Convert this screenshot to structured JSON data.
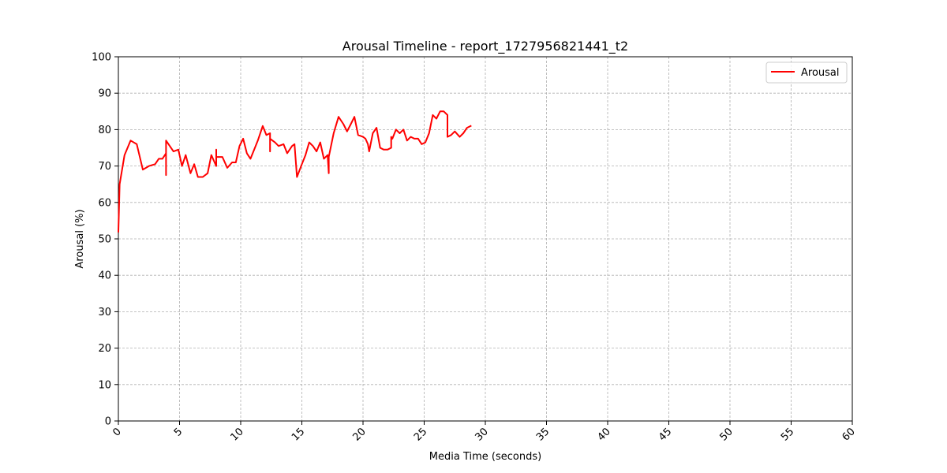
{
  "chart_data": {
    "type": "line",
    "title": "Arousal Timeline - report_1727956821441_t2",
    "xlabel": "Media Time (seconds)",
    "ylabel": "Arousal (%)",
    "xlim": [
      0,
      60
    ],
    "ylim": [
      0,
      100
    ],
    "x_ticks": [
      "0",
      "5",
      "10",
      "15",
      "20",
      "25",
      "30",
      "35",
      "40",
      "45",
      "50",
      "55",
      "60"
    ],
    "y_ticks": [
      "0",
      "10",
      "20",
      "30",
      "40",
      "50",
      "60",
      "70",
      "80",
      "90",
      "100"
    ],
    "x_tick_rotation": "45 degrees",
    "grid": true,
    "legend_position": "top-right",
    "series": [
      {
        "name": "Arousal",
        "color": "#ff0000",
        "points": [
          [
            0.0,
            52
          ],
          [
            0.1,
            65
          ],
          [
            0.5,
            73
          ],
          [
            1.0,
            77
          ],
          [
            1.5,
            76
          ],
          [
            2.0,
            69
          ],
          [
            2.5,
            70
          ],
          [
            3.0,
            70.5
          ],
          [
            3.3,
            72
          ],
          [
            3.6,
            72
          ],
          [
            3.9,
            73.5
          ],
          [
            3.9,
            67.5
          ],
          [
            3.9,
            77
          ],
          [
            4.2,
            75.5
          ],
          [
            4.5,
            74
          ],
          [
            4.9,
            74.5
          ],
          [
            5.2,
            70
          ],
          [
            5.5,
            73
          ],
          [
            5.9,
            68
          ],
          [
            6.2,
            70.5
          ],
          [
            6.5,
            67
          ],
          [
            6.9,
            67
          ],
          [
            7.3,
            68
          ],
          [
            7.6,
            73
          ],
          [
            8.0,
            70
          ],
          [
            8.0,
            74.5
          ],
          [
            8.0,
            72.5
          ],
          [
            8.5,
            72.5
          ],
          [
            8.9,
            69.5
          ],
          [
            9.3,
            71
          ],
          [
            9.6,
            71
          ],
          [
            9.9,
            75.5
          ],
          [
            10.2,
            77.5
          ],
          [
            10.5,
            73.5
          ],
          [
            10.8,
            72
          ],
          [
            11.1,
            74.5
          ],
          [
            11.4,
            77
          ],
          [
            11.8,
            81
          ],
          [
            12.1,
            78.5
          ],
          [
            12.4,
            79
          ],
          [
            12.4,
            74
          ],
          [
            12.4,
            77.5
          ],
          [
            12.8,
            76.5
          ],
          [
            13.1,
            75.5
          ],
          [
            13.5,
            76
          ],
          [
            13.8,
            73.5
          ],
          [
            14.2,
            75.5
          ],
          [
            14.4,
            76
          ],
          [
            14.6,
            67
          ],
          [
            15.0,
            70.5
          ],
          [
            15.3,
            73
          ],
          [
            15.6,
            76.5
          ],
          [
            15.9,
            75.5
          ],
          [
            16.2,
            74
          ],
          [
            16.5,
            76.5
          ],
          [
            16.8,
            72
          ],
          [
            17.1,
            73
          ],
          [
            17.2,
            68
          ],
          [
            17.2,
            72.5
          ],
          [
            17.6,
            79
          ],
          [
            18.0,
            83.5
          ],
          [
            18.4,
            81.5
          ],
          [
            18.7,
            79.5
          ],
          [
            19.0,
            81.5
          ],
          [
            19.3,
            83.5
          ],
          [
            19.6,
            78.5
          ],
          [
            20.0,
            78
          ],
          [
            20.2,
            77.5
          ],
          [
            20.4,
            76
          ],
          [
            20.5,
            74
          ],
          [
            20.8,
            79
          ],
          [
            21.1,
            80.5
          ],
          [
            21.4,
            75
          ],
          [
            21.7,
            74.5
          ],
          [
            22.0,
            74.5
          ],
          [
            22.3,
            75
          ],
          [
            22.3,
            78
          ],
          [
            22.4,
            77.5
          ],
          [
            22.7,
            80
          ],
          [
            23.0,
            79
          ],
          [
            23.3,
            80
          ],
          [
            23.6,
            77
          ],
          [
            23.9,
            78
          ],
          [
            24.2,
            77.5
          ],
          [
            24.5,
            77.5
          ],
          [
            24.8,
            76
          ],
          [
            25.1,
            76.5
          ],
          [
            25.4,
            79
          ],
          [
            25.7,
            84
          ],
          [
            26.0,
            83
          ],
          [
            26.3,
            85
          ],
          [
            26.6,
            85
          ],
          [
            26.9,
            84
          ],
          [
            26.9,
            78
          ],
          [
            27.2,
            78.5
          ],
          [
            27.5,
            79.5
          ],
          [
            27.9,
            78
          ],
          [
            28.2,
            79
          ],
          [
            28.5,
            80.5
          ],
          [
            28.8,
            81
          ]
        ]
      }
    ]
  }
}
